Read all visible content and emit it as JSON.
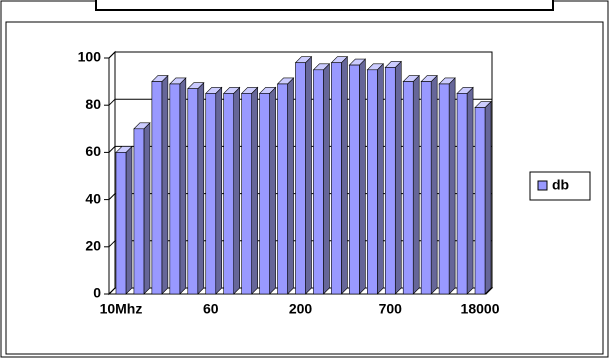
{
  "chart_data": {
    "type": "bar",
    "categories": [
      "10Mhz",
      null,
      null,
      null,
      null,
      "60",
      null,
      null,
      null,
      null,
      "200",
      null,
      null,
      null,
      null,
      "700",
      null,
      null,
      null,
      null,
      "18000"
    ],
    "series": [
      {
        "name": "db",
        "color": "#9999ff",
        "values": [
          60,
          70,
          90,
          89,
          87,
          85,
          85,
          85,
          85,
          89,
          98,
          95,
          98,
          97,
          95,
          96,
          90,
          90,
          89,
          85,
          79
        ]
      }
    ],
    "ylim": [
      0,
      100
    ],
    "yticks": [
      0,
      20,
      40,
      60,
      80,
      100
    ],
    "grid": true,
    "legend": "right"
  }
}
